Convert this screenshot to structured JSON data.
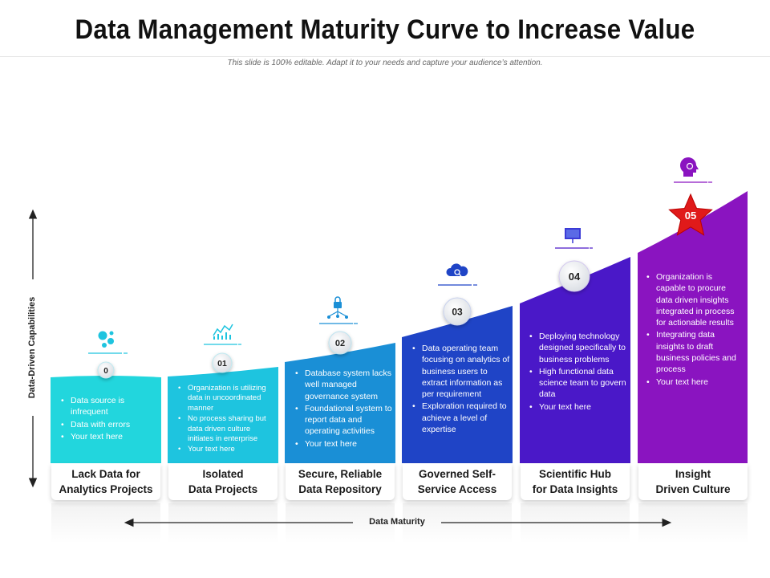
{
  "title": "Data Management Maturity Curve to Increase Value",
  "subtitle": "This slide is 100% editable. Adapt it to your needs and capture your audience’s attention.",
  "y_axis_label": "Data-Driven Capabilities",
  "x_axis_label": "Data Maturity",
  "stages": [
    {
      "number": "0",
      "label": "Lack Data for\nAnalytics Projects",
      "color": "#22d6dd",
      "icon": "data-dots-icon",
      "bullets": [
        "Data source is infrequent",
        "Data with errors",
        "Your text here"
      ]
    },
    {
      "number": "01",
      "label": "Isolated\nData Projects",
      "color": "#1ec4df",
      "icon": "analytics-chart-icon",
      "bullets": [
        "Organization is utilizing data in uncoordinated manner",
        "No process sharing but data driven culture initiates in enterprise",
        "Your text here"
      ]
    },
    {
      "number": "02",
      "label": "Secure, Reliable\nData Repository",
      "color": "#1a8fd6",
      "icon": "secure-network-icon",
      "bullets": [
        "Database system lacks well managed governance system",
        "Foundational system to report data and operating activities",
        "Your text here"
      ]
    },
    {
      "number": "03",
      "label": "Governed Self-\nService Access",
      "color": "#1f44c6",
      "icon": "cloud-search-icon",
      "bullets": [
        "Data operating team focusing on analytics of business users to extract information as per requirement",
        "Exploration required to achieve a level of expertise"
      ]
    },
    {
      "number": "04",
      "label": "Scientific Hub\nfor Data Insights",
      "color": "#4a18c8",
      "icon": "presentation-board-icon",
      "bullets": [
        "Deploying technology designed specifically to business problems",
        "High functional data science team to govern data",
        "Your text here"
      ]
    },
    {
      "number": "05",
      "label": "Insight\nDriven Culture",
      "color": "#8a14c0",
      "icon": "brain-head-icon",
      "bullets": [
        "Organization is capable to procure data driven insights integrated in process for actionable results",
        "Integrating data insights to draft business policies and process",
        "Your text here"
      ]
    }
  ]
}
